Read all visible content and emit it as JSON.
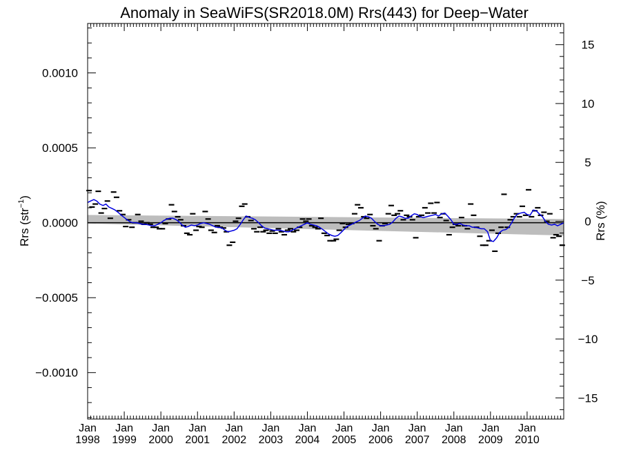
{
  "chart_data": {
    "type": "line",
    "title": "Anomaly in SeaWiFS(SR2018.0M) Rrs(443) for Deep−Water",
    "ylabel_left": "Rrs (str",
    "ylabel_left_sup": "−1",
    "ylabel_left_close": ")",
    "ylabel_right": "Rrs (%)",
    "xlim": [
      1998.0,
      2011.0
    ],
    "ylim_left": [
      -0.00131,
      0.00133
    ],
    "ylim_right": [
      -16.8,
      16.8
    ],
    "left_ticks": [
      {
        "value": 0.001,
        "label": "0.0010"
      },
      {
        "value": 0.0005,
        "label": "0.0005"
      },
      {
        "value": 0.0,
        "label": "0.0000"
      },
      {
        "value": -0.0005,
        "label": "−0.0005"
      },
      {
        "value": -0.001,
        "label": "−0.0010"
      }
    ],
    "right_ticks": [
      {
        "value": 15,
        "label": "15"
      },
      {
        "value": 10,
        "label": "10"
      },
      {
        "value": 5,
        "label": "5"
      },
      {
        "value": 0,
        "label": "0"
      },
      {
        "value": -5,
        "label": "−5"
      },
      {
        "value": -10,
        "label": "−10"
      },
      {
        "value": -15,
        "label": "−15"
      }
    ],
    "x_ticks": [
      {
        "value": 1998,
        "month": "Jan",
        "year": "1998"
      },
      {
        "value": 1999,
        "month": "Jan",
        "year": "1999"
      },
      {
        "value": 2000,
        "month": "Jan",
        "year": "2000"
      },
      {
        "value": 2001,
        "month": "Jan",
        "year": "2001"
      },
      {
        "value": 2002,
        "month": "Jan",
        "year": "2002"
      },
      {
        "value": 2003,
        "month": "Jan",
        "year": "2003"
      },
      {
        "value": 2004,
        "month": "Jan",
        "year": "2004"
      },
      {
        "value": 2005,
        "month": "Jan",
        "year": "2005"
      },
      {
        "value": 2006,
        "month": "Jan",
        "year": "2006"
      },
      {
        "value": 2007,
        "month": "Jan",
        "year": "2007"
      },
      {
        "value": 2008,
        "month": "Jan",
        "year": "2008"
      },
      {
        "value": 2009,
        "month": "Jan",
        "year": "2009"
      },
      {
        "value": 2010,
        "month": "Jan",
        "year": "2010"
      }
    ],
    "zero_line": 0.0,
    "trend_band": {
      "x": [
        1998.0,
        2011.0
      ],
      "upper": [
        5.2e-05,
        2.5e-05
      ],
      "lower": [
        -5e-06,
        -8.5e-05
      ]
    },
    "monthly_anomalies": [
      {
        "x": 1998.04,
        "y": 0.000215
      },
      {
        "x": 1998.12,
        "y": 0.000105
      },
      {
        "x": 1998.21,
        "y": 0.000125
      },
      {
        "x": 1998.29,
        "y": 0.00021
      },
      {
        "x": 1998.37,
        "y": 6.5e-05
      },
      {
        "x": 1998.46,
        "y": 9.5e-05
      },
      {
        "x": 1998.54,
        "y": 0.000145
      },
      {
        "x": 1998.62,
        "y": 3e-05
      },
      {
        "x": 1998.71,
        "y": 0.000205
      },
      {
        "x": 1998.79,
        "y": 0.00017
      },
      {
        "x": 1998.87,
        "y": 8e-05
      },
      {
        "x": 1998.96,
        "y": 5.5e-05
      },
      {
        "x": 1999.04,
        "y": -2.5e-05
      },
      {
        "x": 1999.12,
        "y": 2e-05
      },
      {
        "x": 1999.21,
        "y": -3e-05
      },
      {
        "x": 1999.29,
        "y": 0.0
      },
      {
        "x": 1999.37,
        "y": 5.5e-05
      },
      {
        "x": 1999.46,
        "y": 1e-05
      },
      {
        "x": 1999.54,
        "y": -1e-05
      },
      {
        "x": 1999.62,
        "y": 0.0
      },
      {
        "x": 1999.71,
        "y": -1e-05
      },
      {
        "x": 1999.79,
        "y": -3e-05
      },
      {
        "x": 1999.87,
        "y": -3e-05
      },
      {
        "x": 1999.96,
        "y": -4e-05
      },
      {
        "x": 2000.04,
        "y": -4e-05
      },
      {
        "x": 2000.12,
        "y": -5e-06
      },
      {
        "x": 2000.21,
        "y": 2.5e-05
      },
      {
        "x": 2000.29,
        "y": 0.00012
      },
      {
        "x": 2000.37,
        "y": 7.5e-05
      },
      {
        "x": 2000.46,
        "y": 4e-05
      },
      {
        "x": 2000.54,
        "y": 2e-05
      },
      {
        "x": 2000.62,
        "y": -2e-05
      },
      {
        "x": 2000.71,
        "y": -7e-05
      },
      {
        "x": 2000.79,
        "y": -8e-05
      },
      {
        "x": 2000.87,
        "y": 6e-05
      },
      {
        "x": 2000.96,
        "y": -5e-05
      },
      {
        "x": 2001.04,
        "y": -2.5e-05
      },
      {
        "x": 2001.12,
        "y": -3e-05
      },
      {
        "x": 2001.21,
        "y": 7.5e-05
      },
      {
        "x": 2001.29,
        "y": 2.5e-05
      },
      {
        "x": 2001.37,
        "y": -5e-05
      },
      {
        "x": 2001.46,
        "y": -6.5e-05
      },
      {
        "x": 2001.54,
        "y": -2e-05
      },
      {
        "x": 2001.62,
        "y": -3e-05
      },
      {
        "x": 2001.71,
        "y": -3.5e-05
      },
      {
        "x": 2001.79,
        "y": -6e-05
      },
      {
        "x": 2001.87,
        "y": -0.00015
      },
      {
        "x": 2001.96,
        "y": -0.00013
      },
      {
        "x": 2002.04,
        "y": 1e-05
      },
      {
        "x": 2002.12,
        "y": 3e-05
      },
      {
        "x": 2002.21,
        "y": 0.00011
      },
      {
        "x": 2002.29,
        "y": 0.000125
      },
      {
        "x": 2002.37,
        "y": 4e-05
      },
      {
        "x": 2002.46,
        "y": 1.5e-05
      },
      {
        "x": 2002.54,
        "y": -4e-05
      },
      {
        "x": 2002.62,
        "y": -6e-05
      },
      {
        "x": 2002.71,
        "y": -3e-05
      },
      {
        "x": 2002.79,
        "y": -6e-05
      },
      {
        "x": 2002.87,
        "y": -5e-05
      },
      {
        "x": 2002.96,
        "y": -7e-05
      },
      {
        "x": 2003.04,
        "y": -5.5e-05
      },
      {
        "x": 2003.12,
        "y": -7e-05
      },
      {
        "x": 2003.21,
        "y": -4e-05
      },
      {
        "x": 2003.29,
        "y": -6e-05
      },
      {
        "x": 2003.37,
        "y": -8e-05
      },
      {
        "x": 2003.46,
        "y": -5e-05
      },
      {
        "x": 2003.54,
        "y": -4e-05
      },
      {
        "x": 2003.62,
        "y": -6e-05
      },
      {
        "x": 2003.71,
        "y": -5e-05
      },
      {
        "x": 2003.79,
        "y": -3e-05
      },
      {
        "x": 2003.87,
        "y": 2.5e-05
      },
      {
        "x": 2003.96,
        "y": 1e-05
      },
      {
        "x": 2004.04,
        "y": 2.5e-05
      },
      {
        "x": 2004.12,
        "y": -2e-05
      },
      {
        "x": 2004.21,
        "y": -3e-05
      },
      {
        "x": 2004.29,
        "y": -4e-05
      },
      {
        "x": 2004.37,
        "y": 3e-05
      },
      {
        "x": 2004.46,
        "y": -7e-05
      },
      {
        "x": 2004.54,
        "y": -8.5e-05
      },
      {
        "x": 2004.62,
        "y": -0.00012
      },
      {
        "x": 2004.71,
        "y": -0.00012
      },
      {
        "x": 2004.79,
        "y": -0.00011
      },
      {
        "x": 2004.87,
        "y": -5e-05
      },
      {
        "x": 2004.96,
        "y": -5e-06
      },
      {
        "x": 2005.04,
        "y": -3e-05
      },
      {
        "x": 2005.12,
        "y": -1e-05
      },
      {
        "x": 2005.21,
        "y": -5e-06
      },
      {
        "x": 2005.29,
        "y": 6e-05
      },
      {
        "x": 2005.37,
        "y": 0.00012
      },
      {
        "x": 2005.46,
        "y": 0.0001
      },
      {
        "x": 2005.54,
        "y": 4e-05
      },
      {
        "x": 2005.62,
        "y": 3e-05
      },
      {
        "x": 2005.71,
        "y": 5.5e-05
      },
      {
        "x": 2005.79,
        "y": -2e-05
      },
      {
        "x": 2005.87,
        "y": -4e-05
      },
      {
        "x": 2005.96,
        "y": -0.00012
      },
      {
        "x": 2006.04,
        "y": -2e-05
      },
      {
        "x": 2006.12,
        "y": -5e-06
      },
      {
        "x": 2006.21,
        "y": 6e-05
      },
      {
        "x": 2006.29,
        "y": 0.000115
      },
      {
        "x": 2006.37,
        "y": 5e-05
      },
      {
        "x": 2006.46,
        "y": 6e-05
      },
      {
        "x": 2006.54,
        "y": 8e-05
      },
      {
        "x": 2006.62,
        "y": 2e-05
      },
      {
        "x": 2006.71,
        "y": 5e-05
      },
      {
        "x": 2006.79,
        "y": 4e-05
      },
      {
        "x": 2006.87,
        "y": 2e-05
      },
      {
        "x": 2006.96,
        "y": -0.0001
      },
      {
        "x": 2007.04,
        "y": 4e-05
      },
      {
        "x": 2007.12,
        "y": 5e-05
      },
      {
        "x": 2007.21,
        "y": 0.0001
      },
      {
        "x": 2007.29,
        "y": 6.5e-05
      },
      {
        "x": 2007.37,
        "y": 0.00013
      },
      {
        "x": 2007.46,
        "y": 6.5e-05
      },
      {
        "x": 2007.54,
        "y": 0.000135
      },
      {
        "x": 2007.62,
        "y": 3.5e-05
      },
      {
        "x": 2007.71,
        "y": 6e-05
      },
      {
        "x": 2007.79,
        "y": 1.5e-05
      },
      {
        "x": 2007.87,
        "y": -8e-05
      },
      {
        "x": 2007.96,
        "y": -3e-05
      },
      {
        "x": 2008.04,
        "y": -1e-05
      },
      {
        "x": 2008.12,
        "y": -2e-05
      },
      {
        "x": 2008.21,
        "y": 3.5e-05
      },
      {
        "x": 2008.29,
        "y": -2e-05
      },
      {
        "x": 2008.37,
        "y": -4e-05
      },
      {
        "x": 2008.46,
        "y": 0.000125
      },
      {
        "x": 2008.54,
        "y": 5e-05
      },
      {
        "x": 2008.62,
        "y": -3e-05
      },
      {
        "x": 2008.71,
        "y": -9e-05
      },
      {
        "x": 2008.79,
        "y": -0.00015
      },
      {
        "x": 2008.87,
        "y": -0.00015
      },
      {
        "x": 2008.96,
        "y": -0.00012
      },
      {
        "x": 2009.04,
        "y": -5e-05
      },
      {
        "x": 2009.12,
        "y": -0.00019
      },
      {
        "x": 2009.21,
        "y": -7e-05
      },
      {
        "x": 2009.29,
        "y": -3e-05
      },
      {
        "x": 2009.37,
        "y": 0.00019
      },
      {
        "x": 2009.46,
        "y": -3e-05
      },
      {
        "x": 2009.54,
        "y": 2e-05
      },
      {
        "x": 2009.62,
        "y": 4e-05
      },
      {
        "x": 2009.71,
        "y": 6e-05
      },
      {
        "x": 2009.79,
        "y": 4e-05
      },
      {
        "x": 2009.87,
        "y": 0.00011
      },
      {
        "x": 2009.96,
        "y": 5e-05
      },
      {
        "x": 2010.04,
        "y": 0.00022
      },
      {
        "x": 2010.12,
        "y": 4e-05
      },
      {
        "x": 2010.21,
        "y": 8e-05
      },
      {
        "x": 2010.29,
        "y": 0.0001
      },
      {
        "x": 2010.37,
        "y": 5e-05
      },
      {
        "x": 2010.46,
        "y": 7e-05
      },
      {
        "x": 2010.54,
        "y": 1e-05
      },
      {
        "x": 2010.62,
        "y": 6e-05
      },
      {
        "x": 2010.71,
        "y": -0.0001
      },
      {
        "x": 2010.79,
        "y": -8e-05
      },
      {
        "x": 2010.87,
        "y": -9e-05
      },
      {
        "x": 2010.96,
        "y": -0.00015
      }
    ],
    "running_mean": {
      "color": "#0000e0",
      "x": [
        1998.0,
        1998.08,
        1998.17,
        1998.25,
        1998.33,
        1998.42,
        1998.5,
        1998.58,
        1998.67,
        1998.75,
        1998.83,
        1998.92,
        1999.0,
        1999.08,
        1999.17,
        1999.25,
        1999.33,
        1999.42,
        1999.5,
        1999.58,
        1999.67,
        1999.75,
        1999.83,
        1999.92,
        2000.0,
        2000.08,
        2000.17,
        2000.25,
        2000.33,
        2000.42,
        2000.5,
        2000.58,
        2000.67,
        2000.75,
        2000.83,
        2000.92,
        2001.0,
        2001.08,
        2001.17,
        2001.25,
        2001.33,
        2001.42,
        2001.5,
        2001.58,
        2001.67,
        2001.75,
        2001.83,
        2001.92,
        2002.0,
        2002.08,
        2002.17,
        2002.25,
        2002.33,
        2002.42,
        2002.5,
        2002.58,
        2002.67,
        2002.75,
        2002.83,
        2002.92,
        2003.0,
        2003.08,
        2003.17,
        2003.25,
        2003.33,
        2003.42,
        2003.5,
        2003.58,
        2003.67,
        2003.75,
        2003.83,
        2003.92,
        2004.0,
        2004.08,
        2004.17,
        2004.25,
        2004.33,
        2004.42,
        2004.5,
        2004.58,
        2004.67,
        2004.75,
        2004.83,
        2004.92,
        2005.0,
        2005.08,
        2005.17,
        2005.25,
        2005.33,
        2005.42,
        2005.5,
        2005.58,
        2005.67,
        2005.75,
        2005.83,
        2005.92,
        2006.0,
        2006.08,
        2006.17,
        2006.25,
        2006.33,
        2006.42,
        2006.5,
        2006.58,
        2006.67,
        2006.75,
        2006.83,
        2006.92,
        2007.0,
        2007.08,
        2007.17,
        2007.25,
        2007.33,
        2007.42,
        2007.5,
        2007.58,
        2007.67,
        2007.75,
        2007.83,
        2007.92,
        2008.0,
        2008.08,
        2008.17,
        2008.25,
        2008.33,
        2008.42,
        2008.5,
        2008.58,
        2008.67,
        2008.75,
        2008.83,
        2008.92,
        2009.0,
        2009.08,
        2009.17,
        2009.25,
        2009.33,
        2009.42,
        2009.5,
        2009.58,
        2009.67,
        2009.75,
        2009.83,
        2009.92,
        2010.0,
        2010.08,
        2010.17,
        2010.25,
        2010.33,
        2010.42,
        2010.5,
        2010.58,
        2010.67,
        2010.75,
        2010.83,
        2010.92,
        2011.0
      ],
      "y": [
        0.000135,
        0.000145,
        0.000155,
        0.000145,
        0.000125,
        0.000115,
        0.000125,
        0.000105,
        9.5e-05,
        8.5e-05,
        7e-05,
        5e-05,
        3.5e-05,
        2e-05,
        5e-06,
        0.0,
        0.0,
        -5e-06,
        -1e-05,
        -1e-05,
        -1.5e-05,
        -2e-05,
        -2e-05,
        -1e-05,
        0.0,
        1.5e-05,
        2.5e-05,
        3e-05,
        3e-05,
        2e-05,
        5e-06,
        -1.5e-05,
        -3e-05,
        -2.5e-05,
        -1.5e-05,
        -2e-05,
        -1.5e-05,
        -5e-06,
        0.0,
        -5e-06,
        -1e-05,
        -2e-05,
        -3e-05,
        -3e-05,
        -3.5e-05,
        -5e-05,
        -6e-05,
        -5.5e-05,
        -5e-05,
        -4e-05,
        -1e-05,
        2e-05,
        4.5e-05,
        3.5e-05,
        3e-05,
        2e-05,
        0.0,
        -2e-05,
        -3.5e-05,
        -4e-05,
        -4.5e-05,
        -5e-05,
        -5e-05,
        -5e-05,
        -5.5e-05,
        -6e-05,
        -6e-05,
        -5e-05,
        -4e-05,
        -3e-05,
        -2e-05,
        -1e-05,
        0.0,
        -1e-05,
        -1.5e-05,
        -2e-05,
        -3e-05,
        -4.5e-05,
        -6e-05,
        -7.5e-05,
        -8.5e-05,
        -9e-05,
        -8.5e-05,
        -6.5e-05,
        -4.5e-05,
        -2.5e-05,
        -1.5e-05,
        -5e-06,
        5e-06,
        1.5e-05,
        3e-05,
        4.5e-05,
        4e-05,
        3e-05,
        1e-05,
        -1e-05,
        -2e-05,
        -2e-05,
        -1.5e-05,
        -1e-05,
        5e-06,
        3e-05,
        4.5e-05,
        4e-05,
        3e-05,
        3e-05,
        4.5e-05,
        6e-05,
        5.5e-05,
        4e-05,
        3.5e-05,
        4e-05,
        4.5e-05,
        5e-05,
        5.5e-05,
        4.5e-05,
        6e-05,
        6.5e-05,
        4.5e-05,
        2e-05,
        -1e-05,
        -1e-05,
        -5e-06,
        -1.5e-05,
        -2e-05,
        -2e-05,
        -3e-05,
        -3e-05,
        -3.5e-05,
        -4e-05,
        -4e-05,
        -6e-05,
        -0.00012,
        -0.000125,
        -0.0001,
        -6.5e-05,
        -5e-05,
        -4.5e-05,
        -3e-05,
        0.0,
        4e-05,
        6e-05,
        6.5e-05,
        7e-05,
        5.5e-05,
        5e-05,
        8.5e-05,
        8e-05,
        6e-05,
        4e-05,
        1e-05,
        -1e-05,
        -1.5e-05,
        -1e-05,
        -2e-05,
        -1e-05,
        0.0
      ]
    }
  }
}
